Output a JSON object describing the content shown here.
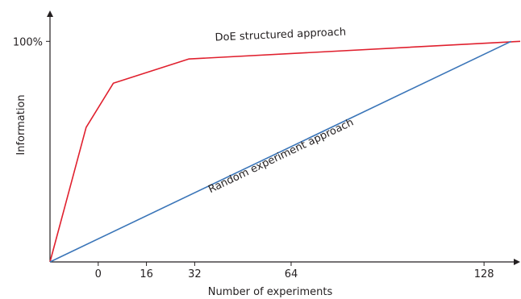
{
  "chart_data": {
    "type": "line",
    "xlabel": "Number of experiments",
    "ylabel": "Information",
    "x_ticks": [
      {
        "value": 0,
        "label": "0"
      },
      {
        "value": 16,
        "label": "16"
      },
      {
        "value": 32,
        "label": "32"
      },
      {
        "value": 64,
        "label": "64"
      },
      {
        "value": 128,
        "label": "128"
      }
    ],
    "y_ticks": [
      {
        "value": 100,
        "label": "100%"
      }
    ],
    "xlim": [
      -16,
      140
    ],
    "ylim": [
      0,
      114
    ],
    "series": [
      {
        "name": "DoE structured approach",
        "color": "#e0202e",
        "x": [
          -16,
          -4,
          5,
          30,
          140
        ],
        "y": [
          0,
          61,
          81,
          92,
          100
        ]
      },
      {
        "name": "Random experiment approach",
        "color": "#3a75b8",
        "x": [
          -16,
          137
        ],
        "y": [
          0,
          100
        ]
      }
    ]
  }
}
